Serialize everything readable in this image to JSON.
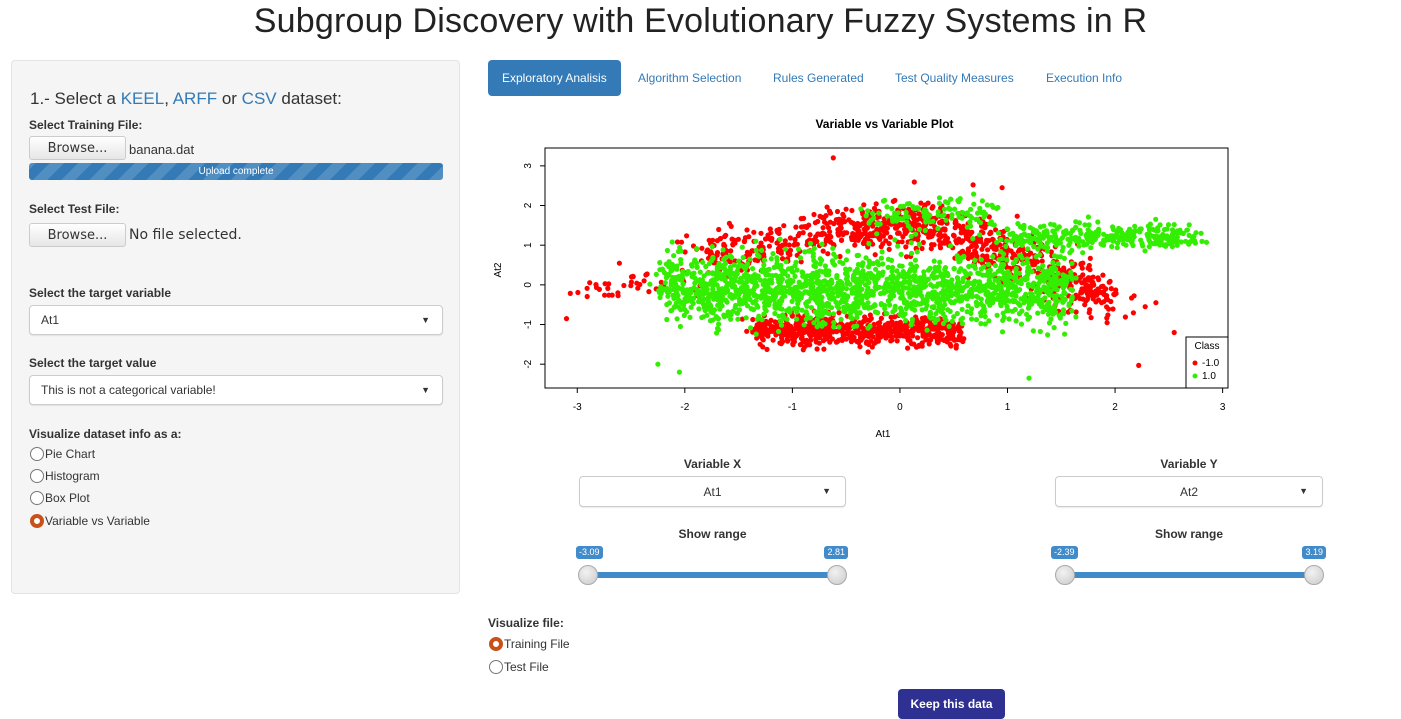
{
  "app": {
    "title": "Subgroup Discovery with Evolutionary Fuzzy Systems in R"
  },
  "sidebar": {
    "heading_prefix": "1.- Select a ",
    "heading_link1": "KEEL",
    "heading_sep1": ", ",
    "heading_link2": "ARFF",
    "heading_sep2": " or ",
    "heading_link3": "CSV",
    "heading_suffix": " dataset:",
    "training_label": "Select Training File:",
    "training_button": "Browse...",
    "training_filename": "banana.dat",
    "upload_status": "Upload complete",
    "upload_progress": 1.0,
    "test_label": "Select Test File:",
    "test_button": "Browse...",
    "test_filename": "No file selected.",
    "target_variable_label": "Select the target variable",
    "target_variable_value": "At1",
    "target_value_label": "Select the target value",
    "target_value_value": "This is not a categorical variable!",
    "visualize_label": "Visualize dataset info as a:",
    "visualize_options": [
      "Pie Chart",
      "Histogram",
      "Box Plot",
      "Variable vs Variable"
    ],
    "visualize_selected": "Variable vs Variable"
  },
  "tabs": [
    {
      "label": "Exploratory Analisis",
      "active": true
    },
    {
      "label": "Algorithm Selection",
      "active": false
    },
    {
      "label": "Rules Generated",
      "active": false
    },
    {
      "label": "Test Quality Measures",
      "active": false
    },
    {
      "label": "Execution Info",
      "active": false
    }
  ],
  "chart_data": {
    "type": "scatter",
    "title": "Variable vs Variable Plot",
    "xlabel": "At1",
    "ylabel": "At2",
    "xlim": [
      -3.3,
      3.05
    ],
    "ylim": [
      -2.6,
      3.45
    ],
    "xticks": [
      -3,
      -2,
      -1,
      0,
      1,
      2,
      3
    ],
    "yticks": [
      -2,
      -1,
      0,
      1,
      2,
      3
    ],
    "grid": false,
    "legend": {
      "title": "Class",
      "position": "bottom-right"
    },
    "series": [
      {
        "name": "-1.0",
        "color": "#ff0000",
        "clusters": [
          {
            "desc": "upper arc",
            "cx": [
              -1.85,
              -0.55,
              0.25,
              1.0,
              1.95
            ],
            "cy": [
              0.75,
              1.35,
              1.55,
              0.8,
              -0.4
            ],
            "spread": 0.28,
            "n": 900
          },
          {
            "desc": "lower band",
            "x_range": [
              -1.35,
              0.55
            ],
            "y_center": -1.15,
            "spread": 0.18,
            "n": 700
          },
          {
            "desc": "left tail",
            "x_range": [
              -3.05,
              -1.8
            ],
            "y_center": 0.0,
            "spread": 0.2,
            "n": 40
          }
        ],
        "outliers": [
          [
            -0.62,
            3.2
          ],
          [
            -3.1,
            -0.85
          ],
          [
            2.22,
            -2.03
          ],
          [
            2.55,
            -1.2
          ],
          [
            2.28,
            -0.55
          ],
          [
            2.38,
            -0.45
          ],
          [
            0.95,
            2.45
          ],
          [
            0.68,
            2.52
          ]
        ]
      },
      {
        "name": "1.0",
        "color": "#33ee00",
        "clusters": [
          {
            "desc": "center band",
            "x_range": [
              -2.2,
              1.6
            ],
            "y_center": -0.1,
            "spread": 0.42,
            "n": 1700
          },
          {
            "desc": "upper right arm",
            "x_range": [
              1.0,
              2.78
            ],
            "y_center": 1.2,
            "spread": 0.18,
            "n": 300
          },
          {
            "desc": "upper mid",
            "x_range": [
              -0.3,
              0.9
            ],
            "y_center": 1.75,
            "spread": 0.22,
            "n": 120
          }
        ],
        "outliers": [
          [
            -2.25,
            -2.0
          ],
          [
            1.2,
            -2.35
          ],
          [
            2.8,
            1.3
          ],
          [
            -2.05,
            -2.2
          ]
        ]
      }
    ]
  },
  "variable_x": {
    "label": "Variable X",
    "value": "At1",
    "range_label": "Show range",
    "range_min": "-3.09",
    "range_max": "2.81"
  },
  "variable_y": {
    "label": "Variable Y",
    "value": "At2",
    "range_label": "Show range",
    "range_min": "-2.39",
    "range_max": "3.19"
  },
  "visualize_file": {
    "label": "Visualize file:",
    "options": [
      "Training File",
      "Test File"
    ],
    "selected": "Training File"
  },
  "keep_button": "Keep this data",
  "colors": {
    "accent": "#337ab7",
    "radio_selected": "#c8511a",
    "keep_button": "#2e3192"
  }
}
